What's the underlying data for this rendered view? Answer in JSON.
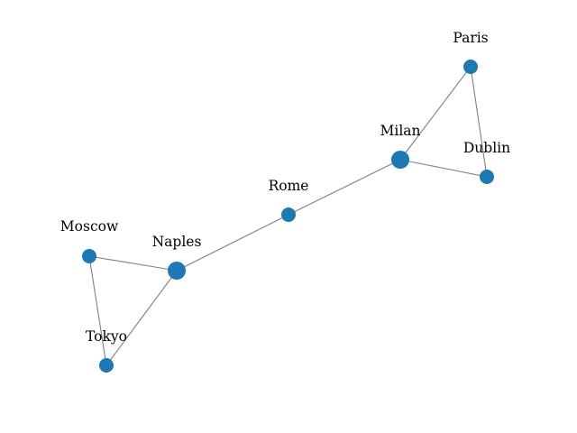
{
  "graph": {
    "colors": {
      "node": "#1f77b4",
      "edge": "#808080",
      "label": "#000000",
      "background": "#ffffff"
    },
    "nodes": [
      {
        "id": "paris",
        "label": "Paris"
      },
      {
        "id": "milan",
        "label": "Milan"
      },
      {
        "id": "dublin",
        "label": "Dublin"
      },
      {
        "id": "rome",
        "label": "Rome"
      },
      {
        "id": "moscow",
        "label": "Moscow"
      },
      {
        "id": "naples",
        "label": "Naples"
      },
      {
        "id": "tokyo",
        "label": "Tokyo"
      }
    ],
    "edges": [
      {
        "source": "paris",
        "target": "milan"
      },
      {
        "source": "paris",
        "target": "dublin"
      },
      {
        "source": "milan",
        "target": "dublin"
      },
      {
        "source": "milan",
        "target": "rome"
      },
      {
        "source": "rome",
        "target": "naples"
      },
      {
        "source": "naples",
        "target": "moscow"
      },
      {
        "source": "naples",
        "target": "tokyo"
      },
      {
        "source": "moscow",
        "target": "tokyo"
      }
    ]
  }
}
